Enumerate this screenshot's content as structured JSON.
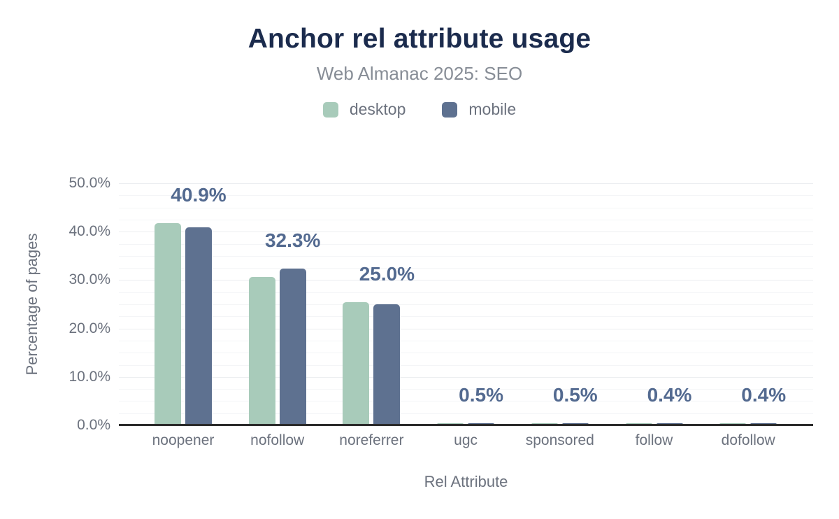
{
  "chart_data": {
    "type": "bar",
    "title": "Anchor rel attribute usage",
    "subtitle": "Web Almanac 2025: SEO",
    "xlabel": "Rel Attribute",
    "ylabel": "Percentage of pages",
    "ylim": [
      0,
      50
    ],
    "ytick_values": [
      0,
      10,
      20,
      30,
      40,
      50
    ],
    "ytick_labels": [
      "0.0%",
      "10.0%",
      "20.0%",
      "30.0%",
      "40.0%",
      "50.0%"
    ],
    "ytick_minor_step": 2.5,
    "grid": true,
    "legend_position": "top",
    "categories": [
      "noopener",
      "nofollow",
      "noreferrer",
      "ugc",
      "sponsored",
      "follow",
      "dofollow"
    ],
    "series": [
      {
        "name": "desktop",
        "color": "#a8cbba",
        "values": [
          41.8,
          30.6,
          25.5,
          0.5,
          0.5,
          0.4,
          0.4
        ]
      },
      {
        "name": "mobile",
        "color": "#5e7190",
        "values": [
          40.9,
          32.3,
          25.0,
          0.5,
          0.5,
          0.4,
          0.4
        ]
      }
    ],
    "bar_value_labels": {
      "labeled_series": "mobile",
      "values": [
        "40.9%",
        "32.3%",
        "25.0%",
        "0.5%",
        "0.5%",
        "0.4%",
        "0.4%"
      ]
    }
  },
  "colors": {
    "background": "#ffffff",
    "title": "#1b2b4d",
    "subtitle": "#878d96",
    "axis_text": "#6c727e",
    "bar_label": "#536a90",
    "axis_line": "#2b2b2b",
    "grid_major": "#ebedf0",
    "grid_minor": "#f4f5f7"
  }
}
